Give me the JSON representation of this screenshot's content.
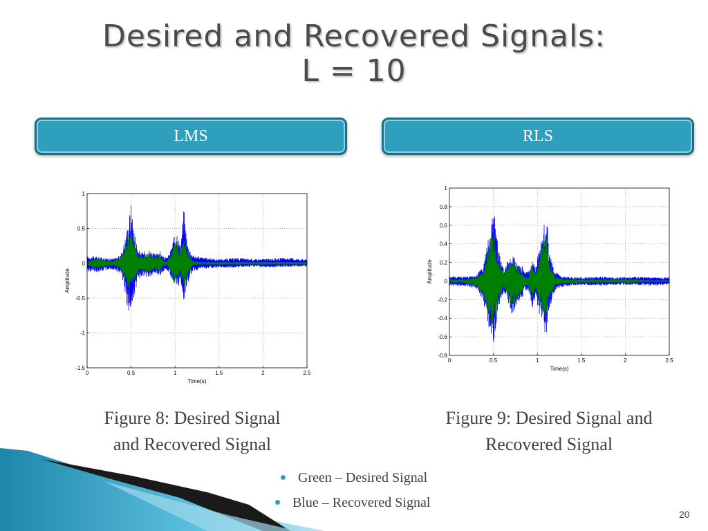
{
  "slide": {
    "title_line1": "Desired and Recovered Signals:",
    "title_line2": "L = 10",
    "page_number": "20"
  },
  "headers": {
    "left": "LMS",
    "right": "RLS"
  },
  "captions": {
    "fig8_line1": "Figure 8: Desired Signal",
    "fig8_line2": "and  Recovered Signal",
    "fig9_line1": "Figure 9: Desired Signal and",
    "fig9_line2": "Recovered Signal"
  },
  "legend": {
    "green": "Green – Desired Signal",
    "blue": "Blue – Recovered Signal"
  },
  "colors": {
    "desired": "#007f00",
    "recovered": "#0000ff",
    "accent": "#2e9fbd"
  },
  "chart_data": [
    {
      "type": "line",
      "title": "",
      "xlabel": "Time(s)",
      "ylabel": "Amplitude",
      "xlim": [
        0,
        2.5
      ],
      "ylim": [
        -1.5,
        1
      ],
      "xticks": [
        0,
        0.5,
        1,
        1.5,
        2,
        2.5
      ],
      "xtick_labels": [
        "0",
        "0.5",
        "1",
        "1.5",
        "2",
        "2.5"
      ],
      "yticks": [
        -1.5,
        -1,
        -0.5,
        0,
        0.5,
        1
      ],
      "ytick_labels": [
        "-1.5",
        "-1",
        "-0.5",
        "0",
        "0.5",
        "1"
      ],
      "grid": true,
      "series": [
        {
          "color": "#0000ff",
          "x": [
            0,
            0.1,
            0.2,
            0.3,
            0.38,
            0.42,
            0.46,
            0.5,
            0.54,
            0.58,
            0.62,
            0.66,
            0.7,
            0.74,
            0.78,
            0.82,
            0.86,
            0.9,
            0.94,
            0.98,
            1.02,
            1.06,
            1.1,
            1.14,
            1.2,
            1.3,
            1.5,
            1.7,
            1.9,
            2.1,
            2.3,
            2.5
          ],
          "upper": [
            0.1,
            0.1,
            0.08,
            0.07,
            0.12,
            0.3,
            0.55,
            0.88,
            0.45,
            0.2,
            0.15,
            0.18,
            0.2,
            0.17,
            0.12,
            0.2,
            0.1,
            0.08,
            0.15,
            0.35,
            0.5,
            0.25,
            0.82,
            0.3,
            0.12,
            0.09,
            0.06,
            0.08,
            0.06,
            0.07,
            0.08,
            0.06
          ],
          "lower": [
            -0.12,
            -0.13,
            -0.1,
            -0.09,
            -0.15,
            -0.3,
            -0.68,
            -0.78,
            -0.45,
            -0.25,
            -0.18,
            -0.2,
            -0.22,
            -0.2,
            -0.15,
            -0.2,
            -0.12,
            -0.1,
            -0.15,
            -0.3,
            -0.45,
            -0.25,
            -0.55,
            -0.3,
            -0.12,
            -0.08,
            -0.06,
            -0.06,
            -0.05,
            -0.06,
            -0.05,
            -0.05
          ]
        },
        {
          "color": "#007f00",
          "x": [
            0,
            0.1,
            0.2,
            0.3,
            0.38,
            0.42,
            0.46,
            0.5,
            0.54,
            0.58,
            0.62,
            0.66,
            0.7,
            0.74,
            0.78,
            0.82,
            0.86,
            0.9,
            0.94,
            0.98,
            1.02,
            1.06,
            1.1,
            1.14,
            1.2,
            1.3,
            1.5,
            1.7,
            1.9,
            2.1,
            2.3,
            2.5
          ],
          "upper": [
            0.03,
            0.08,
            0.05,
            0.04,
            0.08,
            0.2,
            0.4,
            0.5,
            0.3,
            0.14,
            0.1,
            0.12,
            0.15,
            0.12,
            0.08,
            0.15,
            0.05,
            0.02,
            0.1,
            0.25,
            0.35,
            0.12,
            0.42,
            0.2,
            0.03,
            0.02,
            0.02,
            0.02,
            0.02,
            0.02,
            0.02,
            0.02
          ],
          "lower": [
            -0.03,
            -0.08,
            -0.05,
            -0.04,
            -0.08,
            -0.2,
            -0.4,
            -0.45,
            -0.3,
            -0.14,
            -0.1,
            -0.12,
            -0.15,
            -0.12,
            -0.08,
            -0.15,
            -0.05,
            -0.02,
            -0.1,
            -0.25,
            -0.35,
            -0.12,
            -0.4,
            -0.2,
            -0.03,
            -0.02,
            -0.02,
            -0.02,
            -0.02,
            -0.02,
            -0.02,
            -0.02
          ]
        }
      ]
    },
    {
      "type": "line",
      "title": "",
      "xlabel": "Time(s)",
      "ylabel": "Amplitude",
      "xlim": [
        0,
        2.5
      ],
      "ylim": [
        -0.8,
        1
      ],
      "xticks": [
        0,
        0.5,
        1,
        1.5,
        2,
        2.5
      ],
      "xtick_labels": [
        "0",
        "0.5",
        "1",
        "1.5",
        "2",
        "2.5"
      ],
      "yticks": [
        -0.8,
        -0.6,
        -0.4,
        -0.2,
        0,
        0.2,
        0.4,
        0.6,
        0.8,
        1
      ],
      "ytick_labels": [
        "-0.8",
        "-0.6",
        "-0.4",
        "-0.2",
        "0",
        "0.2",
        "0.4",
        "0.6",
        "0.8",
        "1"
      ],
      "grid": true,
      "series": [
        {
          "color": "#0000ff",
          "x": [
            0,
            0.1,
            0.2,
            0.3,
            0.38,
            0.42,
            0.46,
            0.5,
            0.54,
            0.58,
            0.62,
            0.66,
            0.7,
            0.74,
            0.78,
            0.82,
            0.86,
            0.9,
            0.94,
            0.98,
            1.02,
            1.06,
            1.1,
            1.14,
            1.2,
            1.3,
            1.5,
            1.7,
            1.9,
            2.1,
            2.3,
            2.5
          ],
          "upper": [
            0.06,
            0.05,
            0.05,
            0.06,
            0.15,
            0.35,
            0.6,
            0.87,
            0.5,
            0.25,
            0.12,
            0.22,
            0.28,
            0.26,
            0.2,
            0.18,
            0.1,
            0.1,
            0.3,
            0.15,
            0.35,
            0.6,
            0.8,
            0.3,
            0.1,
            0.05,
            0.04,
            0.05,
            0.04,
            0.05,
            0.04,
            0.04
          ],
          "lower": [
            -0.05,
            -0.05,
            -0.06,
            -0.08,
            -0.2,
            -0.4,
            -0.55,
            -0.68,
            -0.4,
            -0.2,
            -0.12,
            -0.2,
            -0.38,
            -0.32,
            -0.25,
            -0.2,
            -0.1,
            -0.1,
            -0.3,
            -0.15,
            -0.35,
            -0.45,
            -0.62,
            -0.3,
            -0.1,
            -0.06,
            -0.04,
            -0.05,
            -0.04,
            -0.04,
            -0.05,
            -0.04
          ]
        },
        {
          "color": "#007f00",
          "x": [
            0,
            0.1,
            0.2,
            0.3,
            0.38,
            0.42,
            0.46,
            0.5,
            0.54,
            0.58,
            0.62,
            0.66,
            0.7,
            0.74,
            0.78,
            0.82,
            0.86,
            0.9,
            0.94,
            0.98,
            1.02,
            1.06,
            1.1,
            1.14,
            1.2,
            1.3,
            1.5,
            1.7,
            1.9,
            2.1,
            2.3,
            2.5
          ],
          "upper": [
            0.02,
            0.02,
            0.02,
            0.04,
            0.1,
            0.25,
            0.45,
            0.6,
            0.35,
            0.18,
            0.08,
            0.16,
            0.22,
            0.2,
            0.15,
            0.12,
            0.05,
            0.05,
            0.22,
            0.08,
            0.25,
            0.45,
            0.55,
            0.2,
            0.05,
            0.02,
            0.02,
            0.02,
            0.02,
            0.02,
            0.01,
            0.01
          ],
          "lower": [
            -0.02,
            -0.02,
            -0.03,
            -0.05,
            -0.15,
            -0.3,
            -0.42,
            -0.5,
            -0.3,
            -0.15,
            -0.08,
            -0.15,
            -0.28,
            -0.25,
            -0.18,
            -0.14,
            -0.05,
            -0.05,
            -0.22,
            -0.08,
            -0.25,
            -0.35,
            -0.45,
            -0.2,
            -0.05,
            -0.03,
            -0.02,
            -0.02,
            -0.02,
            -0.02,
            -0.01,
            -0.01
          ]
        }
      ]
    }
  ]
}
